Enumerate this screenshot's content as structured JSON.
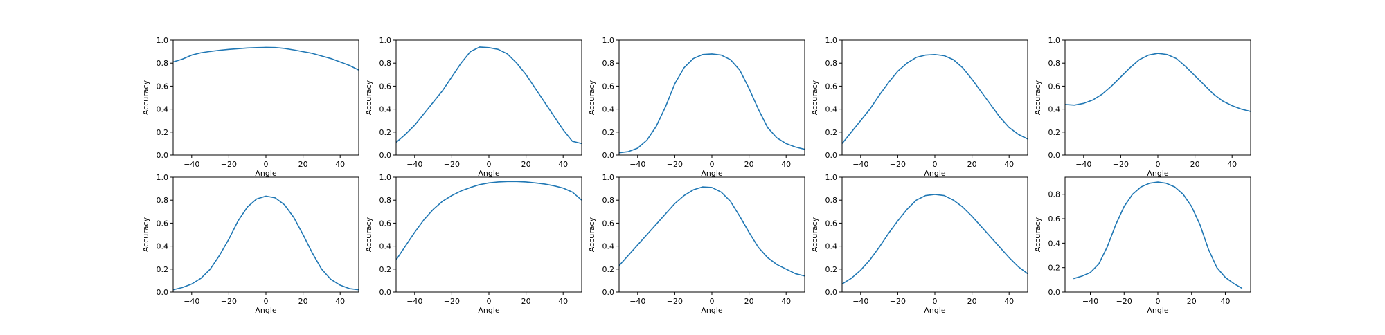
{
  "style": {
    "line_color": "#1f77b4"
  },
  "chart_data": [
    {
      "type": "line",
      "xlabel": "Angle",
      "ylabel": "Accuracy",
      "xlim": [
        -50,
        50
      ],
      "ylim": [
        0,
        1
      ],
      "x_ticks": [
        -40,
        -20,
        0,
        20,
        40
      ],
      "y_ticks": [
        0,
        0.2,
        0.4,
        0.6,
        0.8,
        1
      ],
      "x_tick_labels": [
        "−40",
        "−20",
        "0",
        "20",
        "40"
      ],
      "y_tick_labels": [
        "0.0",
        "0.2",
        "0.4",
        "0.6",
        "0.8",
        "1.0"
      ],
      "series": [
        {
          "x": [
            -50,
            -45,
            -40,
            -35,
            -30,
            -25,
            -20,
            -15,
            -10,
            -5,
            0,
            5,
            10,
            15,
            20,
            25,
            30,
            35,
            40,
            45,
            50
          ],
          "y": [
            0.81,
            0.835,
            0.87,
            0.89,
            0.902,
            0.912,
            0.92,
            0.926,
            0.932,
            0.935,
            0.937,
            0.936,
            0.928,
            0.915,
            0.9,
            0.885,
            0.862,
            0.84,
            0.81,
            0.78,
            0.74
          ]
        }
      ]
    },
    {
      "type": "line",
      "xlabel": "Angle",
      "ylabel": "Accuracy",
      "xlim": [
        -50,
        50
      ],
      "ylim": [
        0,
        1
      ],
      "x_ticks": [
        -40,
        -20,
        0,
        20,
        40
      ],
      "y_ticks": [
        0,
        0.2,
        0.4,
        0.6,
        0.8,
        1
      ],
      "x_tick_labels": [
        "−40",
        "−20",
        "0",
        "20",
        "40"
      ],
      "y_tick_labels": [
        "0.0",
        "0.2",
        "0.4",
        "0.6",
        "0.8",
        "1.0"
      ],
      "series": [
        {
          "x": [
            -50,
            -45,
            -40,
            -35,
            -30,
            -25,
            -20,
            -15,
            -10,
            -5,
            0,
            5,
            10,
            15,
            20,
            25,
            30,
            35,
            40,
            45,
            50
          ],
          "y": [
            0.11,
            0.18,
            0.26,
            0.36,
            0.46,
            0.56,
            0.68,
            0.8,
            0.9,
            0.94,
            0.935,
            0.92,
            0.88,
            0.8,
            0.7,
            0.58,
            0.46,
            0.34,
            0.22,
            0.12,
            0.1
          ]
        }
      ]
    },
    {
      "type": "line",
      "xlabel": "Angle",
      "ylabel": "Accuracy",
      "xlim": [
        -50,
        50
      ],
      "ylim": [
        0,
        1
      ],
      "x_ticks": [
        -40,
        -20,
        0,
        20,
        40
      ],
      "y_ticks": [
        0,
        0.2,
        0.4,
        0.6,
        0.8,
        1
      ],
      "x_tick_labels": [
        "−40",
        "−20",
        "0",
        "20",
        "40"
      ],
      "y_tick_labels": [
        "0.0",
        "0.2",
        "0.4",
        "0.6",
        "0.8",
        "1.0"
      ],
      "series": [
        {
          "x": [
            -50,
            -45,
            -40,
            -35,
            -30,
            -25,
            -20,
            -15,
            -10,
            -5,
            0,
            5,
            10,
            15,
            20,
            25,
            30,
            35,
            40,
            45,
            50
          ],
          "y": [
            0.02,
            0.03,
            0.06,
            0.13,
            0.25,
            0.42,
            0.62,
            0.76,
            0.84,
            0.875,
            0.88,
            0.87,
            0.83,
            0.74,
            0.58,
            0.4,
            0.24,
            0.15,
            0.1,
            0.07,
            0.05
          ]
        }
      ]
    },
    {
      "type": "line",
      "xlabel": "Angle",
      "ylabel": "Accuracy",
      "xlim": [
        -50,
        50
      ],
      "ylim": [
        0,
        1
      ],
      "x_ticks": [
        -40,
        -20,
        0,
        20,
        40
      ],
      "y_ticks": [
        0,
        0.2,
        0.4,
        0.6,
        0.8,
        1
      ],
      "x_tick_labels": [
        "−40",
        "−20",
        "0",
        "20",
        "40"
      ],
      "y_tick_labels": [
        "0.0",
        "0.2",
        "0.4",
        "0.6",
        "0.8",
        "1.0"
      ],
      "series": [
        {
          "x": [
            -50,
            -45,
            -40,
            -35,
            -30,
            -25,
            -20,
            -15,
            -10,
            -5,
            0,
            5,
            10,
            15,
            20,
            25,
            30,
            35,
            40,
            45,
            50
          ],
          "y": [
            0.1,
            0.2,
            0.3,
            0.4,
            0.52,
            0.63,
            0.73,
            0.8,
            0.85,
            0.87,
            0.875,
            0.865,
            0.83,
            0.76,
            0.66,
            0.55,
            0.44,
            0.33,
            0.24,
            0.18,
            0.14
          ]
        }
      ]
    },
    {
      "type": "line",
      "xlabel": "Angle",
      "ylabel": "Accuracy",
      "xlim": [
        -50,
        50
      ],
      "ylim": [
        0,
        1
      ],
      "x_ticks": [
        -40,
        -20,
        0,
        20,
        40
      ],
      "y_ticks": [
        0,
        0.2,
        0.4,
        0.6,
        0.8,
        1
      ],
      "x_tick_labels": [
        "−40",
        "−20",
        "0",
        "20",
        "40"
      ],
      "y_tick_labels": [
        "0.0",
        "0.2",
        "0.4",
        "0.6",
        "0.8",
        "1.0"
      ],
      "series": [
        {
          "x": [
            -50,
            -45,
            -40,
            -35,
            -30,
            -25,
            -20,
            -15,
            -10,
            -5,
            0,
            5,
            10,
            15,
            20,
            25,
            30,
            35,
            40,
            45,
            50
          ],
          "y": [
            0.44,
            0.435,
            0.45,
            0.48,
            0.53,
            0.6,
            0.68,
            0.76,
            0.83,
            0.87,
            0.885,
            0.875,
            0.84,
            0.77,
            0.69,
            0.61,
            0.53,
            0.47,
            0.43,
            0.4,
            0.38
          ]
        }
      ]
    },
    {
      "type": "line",
      "xlabel": "Angle",
      "ylabel": "Accuracy",
      "xlim": [
        -50,
        50
      ],
      "ylim": [
        0,
        1
      ],
      "x_ticks": [
        -40,
        -20,
        0,
        20,
        40
      ],
      "y_ticks": [
        0,
        0.2,
        0.4,
        0.6,
        0.8,
        1
      ],
      "x_tick_labels": [
        "−40",
        "−20",
        "0",
        "20",
        "40"
      ],
      "y_tick_labels": [
        "0.0",
        "0.2",
        "0.4",
        "0.6",
        "0.8",
        "1.0"
      ],
      "series": [
        {
          "x": [
            -50,
            -45,
            -40,
            -35,
            -30,
            -25,
            -20,
            -15,
            -10,
            -5,
            0,
            5,
            10,
            15,
            20,
            25,
            30,
            35,
            40,
            45,
            50
          ],
          "y": [
            0.02,
            0.04,
            0.07,
            0.12,
            0.2,
            0.32,
            0.46,
            0.62,
            0.74,
            0.81,
            0.835,
            0.82,
            0.76,
            0.65,
            0.5,
            0.34,
            0.2,
            0.11,
            0.06,
            0.03,
            0.02
          ]
        }
      ]
    },
    {
      "type": "line",
      "xlabel": "Angle",
      "ylabel": "Accuracy",
      "xlim": [
        -50,
        50
      ],
      "ylim": [
        0,
        1
      ],
      "x_ticks": [
        -40,
        -20,
        0,
        20,
        40
      ],
      "y_ticks": [
        0,
        0.2,
        0.4,
        0.6,
        0.8,
        1
      ],
      "x_tick_labels": [
        "−40",
        "−20",
        "0",
        "20",
        "40"
      ],
      "y_tick_labels": [
        "0.0",
        "0.2",
        "0.4",
        "0.6",
        "0.8",
        "1.0"
      ],
      "series": [
        {
          "x": [
            -50,
            -45,
            -40,
            -35,
            -30,
            -25,
            -20,
            -15,
            -10,
            -5,
            0,
            5,
            10,
            15,
            20,
            25,
            30,
            35,
            40,
            45,
            50
          ],
          "y": [
            0.28,
            0.4,
            0.52,
            0.63,
            0.72,
            0.79,
            0.84,
            0.88,
            0.91,
            0.935,
            0.95,
            0.958,
            0.962,
            0.962,
            0.958,
            0.95,
            0.94,
            0.925,
            0.905,
            0.87,
            0.8
          ]
        }
      ]
    },
    {
      "type": "line",
      "xlabel": "Angle",
      "ylabel": "Accuracy",
      "xlim": [
        -50,
        50
      ],
      "ylim": [
        0,
        1
      ],
      "x_ticks": [
        -40,
        -20,
        0,
        20,
        40
      ],
      "y_ticks": [
        0,
        0.2,
        0.4,
        0.6,
        0.8,
        1
      ],
      "x_tick_labels": [
        "−40",
        "−20",
        "0",
        "20",
        "40"
      ],
      "y_tick_labels": [
        "0.0",
        "0.2",
        "0.4",
        "0.6",
        "0.8",
        "1.0"
      ],
      "series": [
        {
          "x": [
            -50,
            -45,
            -40,
            -35,
            -30,
            -25,
            -20,
            -15,
            -10,
            -5,
            0,
            5,
            10,
            15,
            20,
            25,
            30,
            35,
            40,
            45,
            50
          ],
          "y": [
            0.23,
            0.32,
            0.41,
            0.5,
            0.59,
            0.68,
            0.77,
            0.84,
            0.89,
            0.915,
            0.91,
            0.87,
            0.79,
            0.66,
            0.52,
            0.39,
            0.3,
            0.24,
            0.2,
            0.16,
            0.14
          ]
        }
      ]
    },
    {
      "type": "line",
      "xlabel": "Angle",
      "ylabel": "Accuracy",
      "xlim": [
        -50,
        50
      ],
      "ylim": [
        0,
        1
      ],
      "x_ticks": [
        -40,
        -20,
        0,
        20,
        40
      ],
      "y_ticks": [
        0,
        0.2,
        0.4,
        0.6,
        0.8,
        1
      ],
      "x_tick_labels": [
        "−40",
        "−20",
        "0",
        "20",
        "40"
      ],
      "y_tick_labels": [
        "0.0",
        "0.2",
        "0.4",
        "0.6",
        "0.8",
        "1.0"
      ],
      "series": [
        {
          "x": [
            -50,
            -45,
            -40,
            -35,
            -30,
            -25,
            -20,
            -15,
            -10,
            -5,
            0,
            5,
            10,
            15,
            20,
            25,
            30,
            35,
            40,
            45,
            50
          ],
          "y": [
            0.07,
            0.12,
            0.19,
            0.28,
            0.39,
            0.51,
            0.62,
            0.72,
            0.8,
            0.84,
            0.85,
            0.84,
            0.8,
            0.74,
            0.66,
            0.57,
            0.48,
            0.39,
            0.3,
            0.22,
            0.16
          ]
        }
      ]
    },
    {
      "type": "line",
      "xlabel": "Angle",
      "ylabel": "Accuracy",
      "xlim": [
        -55,
        55
      ],
      "ylim": [
        0,
        0.94
      ],
      "x_ticks": [
        -40,
        -20,
        0,
        20,
        40
      ],
      "y_ticks": [
        0,
        0.2,
        0.4,
        0.6,
        0.8
      ],
      "x_tick_labels": [
        "−40",
        "−20",
        "0",
        "20",
        "40"
      ],
      "y_tick_labels": [
        "0.0",
        "0.2",
        "0.4",
        "0.6",
        "0.8"
      ],
      "series": [
        {
          "x": [
            -50,
            -45,
            -40,
            -35,
            -30,
            -25,
            -20,
            -15,
            -10,
            -5,
            0,
            5,
            10,
            15,
            20,
            25,
            30,
            35,
            40,
            45,
            50
          ],
          "y": [
            0.11,
            0.13,
            0.16,
            0.23,
            0.37,
            0.55,
            0.7,
            0.8,
            0.86,
            0.89,
            0.9,
            0.89,
            0.86,
            0.8,
            0.7,
            0.55,
            0.35,
            0.2,
            0.12,
            0.07,
            0.03
          ]
        }
      ]
    }
  ]
}
